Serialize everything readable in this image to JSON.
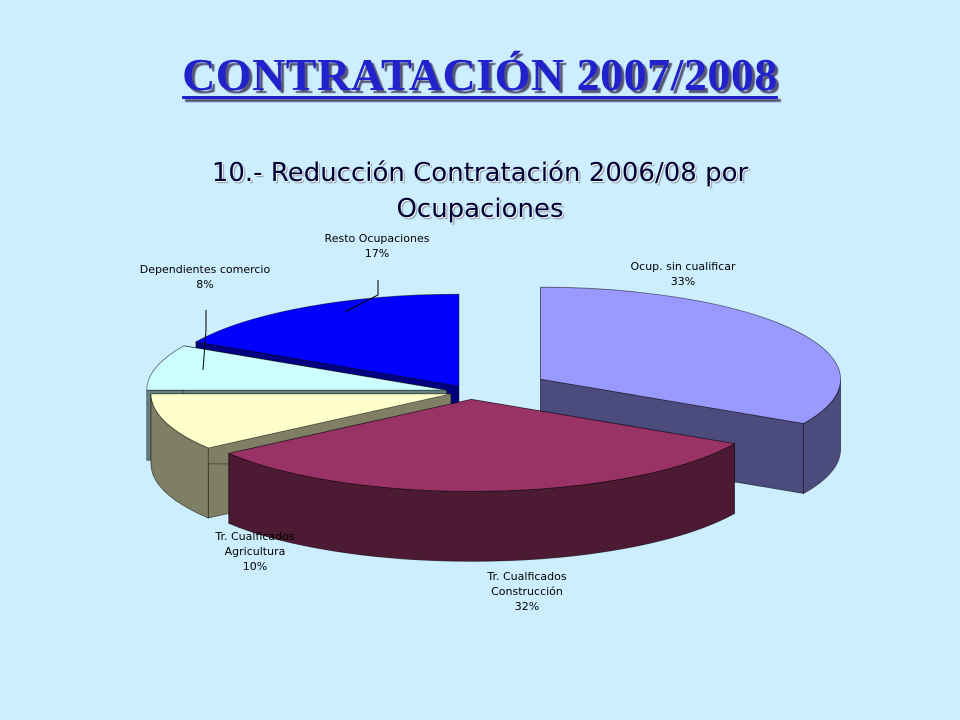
{
  "slide": {
    "title": "CONTRATACIÓN 2007/2008"
  },
  "chart_data": {
    "type": "pie",
    "title": "10.- Reducción Contratación 2006/08 por Ocupaciones",
    "title_lines": [
      "10.- Reducción Contratación 2006/08 por",
      "Ocupaciones"
    ],
    "three_d": true,
    "exploded": true,
    "legend": "none",
    "slices": [
      {
        "label": "Ocup. sin cualificar",
        "label_lines": [
          "Ocup. sin cualificar"
        ],
        "value": 33,
        "value_label": "33%",
        "color": "#9999ff",
        "side_color": "#4b4b7d"
      },
      {
        "label": "Tr. Cualficados Construcción",
        "label_lines": [
          "Tr. Cualficados",
          "Construcción"
        ],
        "value": 32,
        "value_label": "32%",
        "color": "#993366",
        "side_color": "#4d1a33"
      },
      {
        "label": "Tr. Cualficados Agricultura",
        "label_lines": [
          "Tr. Cualficados",
          "Agricultura"
        ],
        "value": 10,
        "value_label": "10%",
        "color": "#ffffcc",
        "side_color": "#7f7f66"
      },
      {
        "label": "Dependientes comercio",
        "label_lines": [
          "Dependientes comercio"
        ],
        "value": 8,
        "value_label": "8%",
        "color": "#ccffff",
        "side_color": "#668080"
      },
      {
        "label": "Resto Ocupaciones",
        "label_lines": [
          "Resto Ocupaciones"
        ],
        "value": 17,
        "value_label": "17%",
        "color": "#0000ff",
        "side_color": "#000080"
      }
    ]
  }
}
